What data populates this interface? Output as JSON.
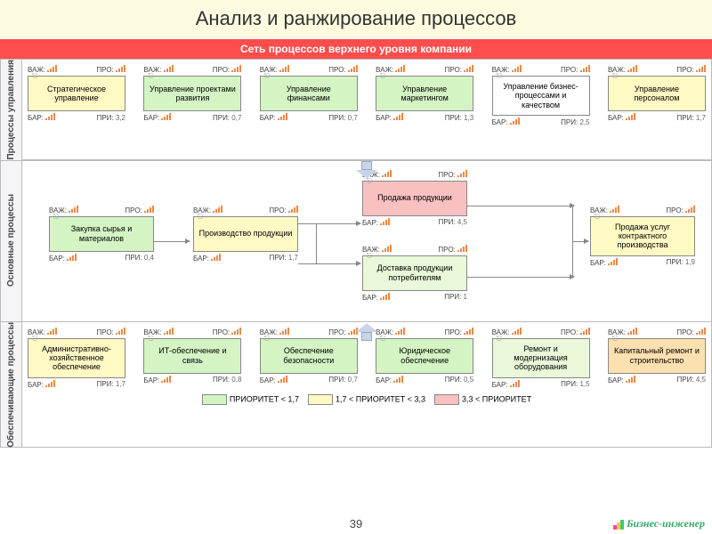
{
  "title": "Анализ и ранжирование процессов",
  "header": "Сеть процессов верхнего уровня компании",
  "labels": {
    "vaz": "ВАЖ:",
    "pro": "ПРО:",
    "bar": "БАР:",
    "pri": "ПРИ:"
  },
  "sections": {
    "management": {
      "label": "Процессы управления",
      "boxes": [
        {
          "text": "Стратегическое управление",
          "color": "c-yellow",
          "pri": "3,2"
        },
        {
          "text": "Управление проектами развития",
          "color": "c-green",
          "pri": "0,7"
        },
        {
          "text": "Управление финансами",
          "color": "c-green",
          "pri": "0,7"
        },
        {
          "text": "Управление маркетингом",
          "color": "c-green",
          "pri": "1,3"
        },
        {
          "text": "Управление бизнес-процессами и качеством",
          "color": "c-white",
          "pri": "2,5"
        },
        {
          "text": "Управление персоналом",
          "color": "c-yellow",
          "pri": "1,7"
        }
      ]
    },
    "core": {
      "label": "Основные процессы",
      "boxes": {
        "b1": {
          "text": "Закупка сырья и материалов",
          "color": "c-green",
          "pri": "0,4"
        },
        "b2": {
          "text": "Производство продукции",
          "color": "c-yellow",
          "pri": "1,7"
        },
        "b3": {
          "text": "Продажа продукции",
          "color": "c-red",
          "pri": "4,5"
        },
        "b4": {
          "text": "Доставка продукции потребителям",
          "color": "c-lgreen",
          "pri": "1"
        },
        "b5": {
          "text": "Продажа услуг контрактного производства",
          "color": "c-yellow",
          "pri": "1,9"
        }
      }
    },
    "support": {
      "label": "Обеспечивающие процессы",
      "boxes": [
        {
          "text": "Административно-хозяйственное обеспечение",
          "color": "c-yellow",
          "pri": "1,7"
        },
        {
          "text": "ИТ-обеспечение и связь",
          "color": "c-green",
          "pri": "0,8"
        },
        {
          "text": "Обеспечение безопасности",
          "color": "c-green",
          "pri": "0,7"
        },
        {
          "text": "Юридическое обеспечение",
          "color": "c-green",
          "pri": "0,5"
        },
        {
          "text": "Ремонт и модернизация оборудования",
          "color": "c-lgreen",
          "pri": "1,5"
        },
        {
          "text": "Капитальный ремонт и строительство",
          "color": "c-orange",
          "pri": "4,5"
        }
      ]
    }
  },
  "legend": {
    "items": [
      {
        "color": "c-green",
        "text": "ПРИОРИТЕТ < 1,7"
      },
      {
        "color": "c-yellow",
        "text": "1,7 < ПРИОРИТЕТ < 3,3"
      },
      {
        "color": "c-red",
        "text": "3,3 < ПРИОРИТЕТ"
      }
    ]
  },
  "page_number": "39",
  "brand": "Бизнес-инженер",
  "colors": {
    "header_bg": "#ff4d4d",
    "title_bg": "#fdfce0",
    "green": "#d4f4c4",
    "yellow": "#fff9c4",
    "red": "#f8c0c0",
    "orange": "#fde0b0",
    "border": "#888888"
  }
}
